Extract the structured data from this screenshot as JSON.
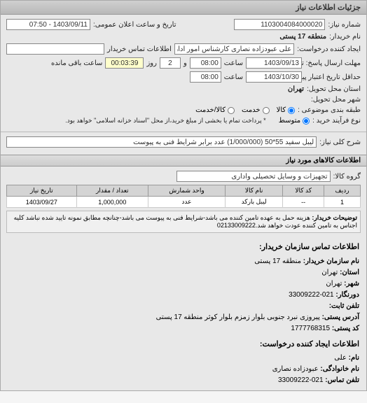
{
  "header": "جزئیات اطلاعات نیاز",
  "reqNumber": {
    "label": "شماره نیاز:",
    "value": "1103004084000020"
  },
  "announceTime": {
    "label": "تاریخ و ساعت اعلان عمومی:",
    "value": "1403/09/11 - 07:50"
  },
  "buyerName": {
    "label": "نام خریدار:",
    "value": "منطقه 17 پستی"
  },
  "creator": {
    "label": "ایجاد کننده درخواست:",
    "value": "علی عبودزاده نصاری کارشناس امور اداری منطقه 17 پستی"
  },
  "buyerContact": {
    "label": "اطلاعات تماس خریدار",
    "value": ""
  },
  "responseDeadline": {
    "label": "مهلت ارسال پاسخ: تا تاریخ:",
    "date": "1403/09/13",
    "timeLabel": "ساعت",
    "time": "08:00",
    "and": "و",
    "days": "2",
    "daysLabel": "روز",
    "remain": "00:03:39",
    "remainLabel": "ساعت باقی مانده"
  },
  "validityDeadline": {
    "label": "حداقل تاریخ اعتبار پیشنهاد: تا تاریخ:",
    "date": "1403/10/30",
    "timeLabel": "ساعت",
    "time": "08:00"
  },
  "deliveryProvince": {
    "label": "استان محل تحویل:",
    "value": "تهران"
  },
  "deliveryCity": {
    "label": "شهر محل تحویل:",
    "value": ""
  },
  "subjectClass": {
    "label": "طبقه بندی موضوعی :",
    "options": [
      "کالا",
      "خدمت",
      "کالا/خدمت"
    ],
    "selected": 0
  },
  "purchaseProcess": {
    "label": "نوع فرآیند خرید :",
    "options": [
      "متوسط"
    ],
    "note": "* پرداخت تمام یا بخشی از مبلغ خرید،از محل \"اسناد خزانه اسلامی\" خواهد بود."
  },
  "overallDesc": {
    "label": "شرح کلی نیاز:",
    "value": "لیبل سفید 55*50 (1/000/000) عدد برابر شرایط فنی به پیوست"
  },
  "goodsInfo": {
    "title": "اطلاعات کالاهای مورد نیاز",
    "groupLabel": "گروه کالا:",
    "groupValue": "تجهیزات و وسایل تحصیلی واداری"
  },
  "table": {
    "headers": [
      "ردیف",
      "کد کالا",
      "نام کالا",
      "واحد شمارش",
      "تعداد / مقدار",
      "تاریخ نیاز"
    ],
    "row": {
      "idx": "1",
      "code": "--",
      "name": "لیبل بارکد",
      "unit": "عدد",
      "qty": "1,000,000",
      "date": "1403/09/27"
    }
  },
  "buyerNote": {
    "label": "توضیحات خریدار:",
    "value": "هزینه حمل به عهده تامین کننده می باشد-شرایط فنی به پیوست می باشد-چنانچه مطابق نمونه تایید شده نباشد کلیه اجناس به تامین کننده عودت خواهد شد.02133009222"
  },
  "buyerOrgContact": {
    "title": "اطلاعات تماس سازمان خریدار:",
    "lines": [
      {
        "k": "نام سازمان خریدار:",
        "v": "منطقه 17 پستی"
      },
      {
        "k": "استان:",
        "v": "تهران"
      },
      {
        "k": "شهر:",
        "v": "تهران"
      },
      {
        "k": "دورنگار:",
        "v": "021-33009222"
      },
      {
        "k": "تلفن ثابت:",
        "v": ""
      },
      {
        "k": "آدرس پستی:",
        "v": "پیروزی نبرد جنوبی بلوار زمزم بلوار کوثر منطقه 17 پستی"
      },
      {
        "k": "کد پستی:",
        "v": "1777768315"
      }
    ]
  },
  "reqCreatorContact": {
    "title": "اطلاعات ایجاد کننده درخواست:",
    "lines": [
      {
        "k": "نام:",
        "v": "علی"
      },
      {
        "k": "نام خانوادگی:",
        "v": "عبودزاده نصاری"
      },
      {
        "k": "تلفن تماس:",
        "v": "021-33009222"
      }
    ]
  }
}
